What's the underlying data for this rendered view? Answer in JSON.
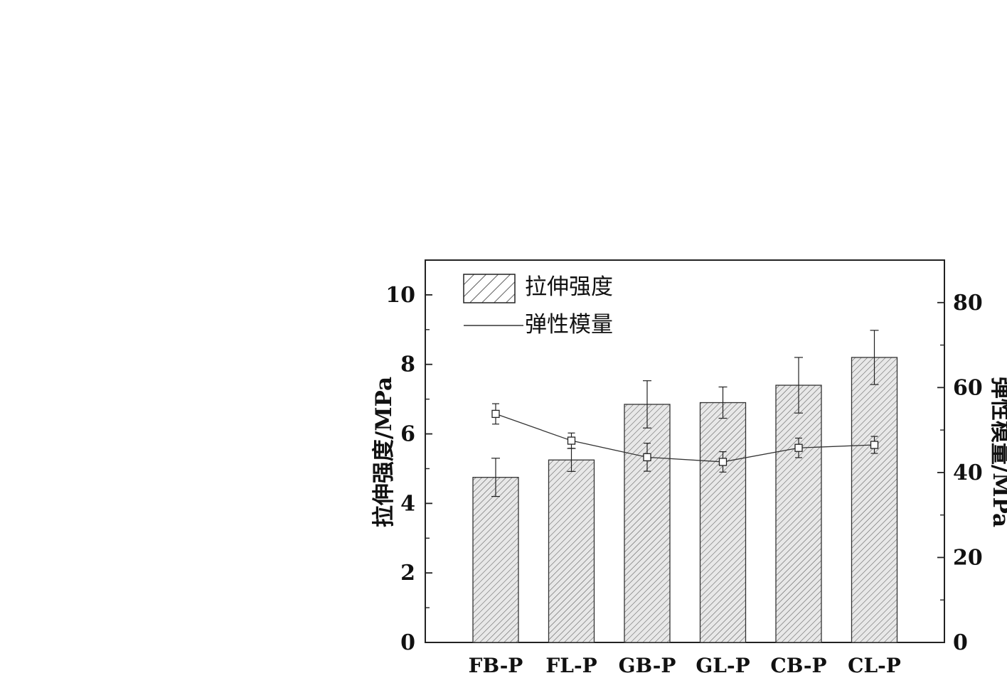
{
  "chart_data": {
    "type": "bar",
    "categories": [
      "FB-P",
      "FL-P",
      "GB-P",
      "GL-P",
      "CB-P",
      "CL-P"
    ],
    "series": [
      {
        "name": "拉伸强度",
        "type": "bar",
        "axis": "left",
        "values": [
          4.75,
          5.25,
          6.85,
          6.9,
          7.4,
          8.2
        ],
        "error": [
          0.55,
          0.33,
          0.68,
          0.45,
          0.8,
          0.78
        ]
      },
      {
        "name": "弹性模量",
        "type": "line",
        "axis": "right",
        "values": [
          53.8,
          47.5,
          43.6,
          42.5,
          45.8,
          46.5
        ],
        "error": [
          2.4,
          1.8,
          3.3,
          2.4,
          2.3,
          2.0
        ]
      }
    ],
    "ylabel": "拉伸强度/MPa",
    "y2label": "弹性模量/MPa",
    "ylim": [
      0,
      11
    ],
    "y2lim": [
      0,
      90
    ],
    "yticks": [
      "0",
      "2",
      "4",
      "6",
      "8",
      "10"
    ],
    "y2ticks": [
      "0",
      "20",
      "40",
      "60",
      "80"
    ],
    "legend_position": "top-left",
    "grid": false,
    "colors": {
      "bar_fill": "#e6e6e6",
      "hatch": "#5a5a5a",
      "axis": "#222222",
      "line": "#333333"
    }
  }
}
